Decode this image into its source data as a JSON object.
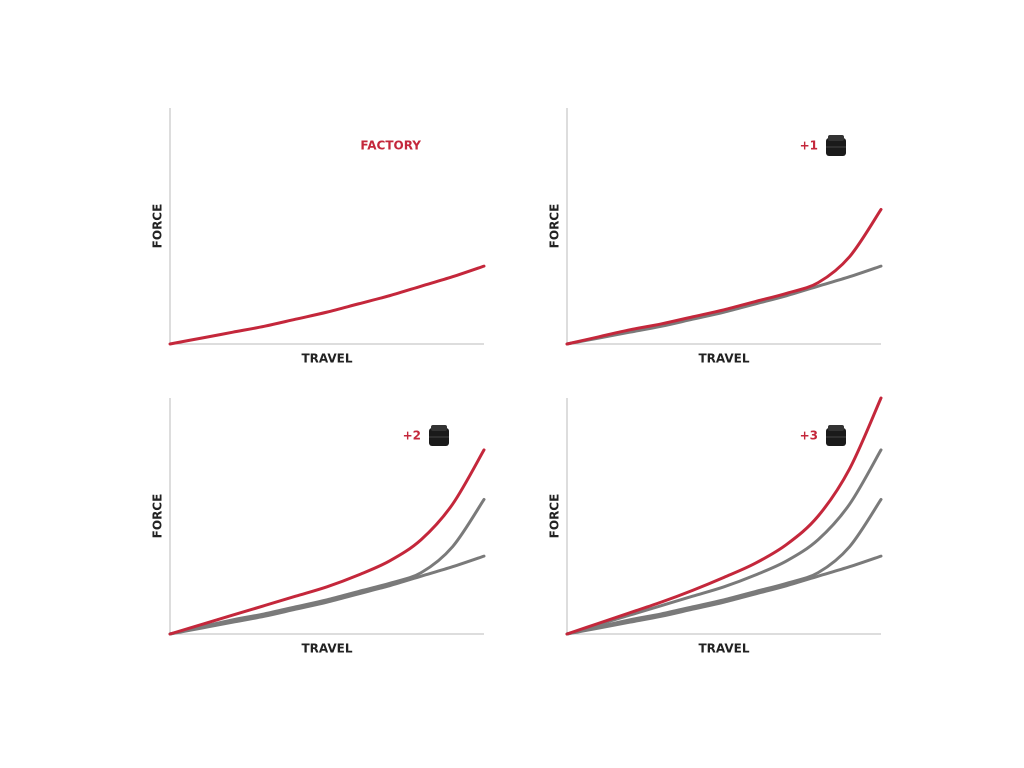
{
  "chart_data": [
    {
      "type": "line",
      "annotation": "FACTORY",
      "token_icon": false,
      "xlabel": "TRAVEL",
      "ylabel": "FORCE",
      "xlim": [
        0,
        100
      ],
      "ylim": [
        0,
        100
      ],
      "x": [
        0,
        10,
        20,
        30,
        40,
        50,
        60,
        70,
        80,
        90,
        100
      ],
      "series": [
        {
          "color": "#c4273b",
          "values": [
            0,
            2.5,
            5,
            7.5,
            10.5,
            13.5,
            17,
            20.5,
            24.5,
            28.5,
            33
          ]
        }
      ]
    },
    {
      "type": "line",
      "annotation": "+1",
      "token_icon": true,
      "xlabel": "TRAVEL",
      "ylabel": "FORCE",
      "xlim": [
        0,
        100
      ],
      "ylim": [
        0,
        100
      ],
      "x": [
        0,
        10,
        20,
        30,
        40,
        50,
        60,
        70,
        80,
        90,
        100
      ],
      "series": [
        {
          "color": "#7a7a7a",
          "values": [
            0,
            2.5,
            5,
            7.5,
            10.5,
            13.5,
            17,
            20.5,
            24.5,
            28.5,
            33
          ]
        },
        {
          "color": "#c4273b",
          "values": [
            0,
            3,
            6,
            8.5,
            11.5,
            14.5,
            18,
            21.5,
            26,
            37,
            57
          ]
        }
      ]
    },
    {
      "type": "line",
      "annotation": "+2",
      "token_icon": true,
      "xlabel": "TRAVEL",
      "ylabel": "FORCE",
      "xlim": [
        0,
        100
      ],
      "ylim": [
        0,
        100
      ],
      "x": [
        0,
        10,
        20,
        30,
        40,
        50,
        60,
        70,
        80,
        90,
        100
      ],
      "series": [
        {
          "color": "#7a7a7a",
          "values": [
            0,
            2.5,
            5,
            7.5,
            10.5,
            13.5,
            17,
            20.5,
            24.5,
            28.5,
            33
          ]
        },
        {
          "color": "#7a7a7a",
          "values": [
            0,
            3,
            6,
            8.5,
            11.5,
            14.5,
            18,
            21.5,
            26,
            37,
            57
          ]
        },
        {
          "color": "#c4273b",
          "values": [
            0,
            4,
            8,
            12,
            16,
            20,
            25,
            31,
            40,
            55,
            78
          ]
        }
      ]
    },
    {
      "type": "line",
      "annotation": "+3",
      "token_icon": true,
      "xlabel": "TRAVEL",
      "ylabel": "FORCE",
      "xlim": [
        0,
        100
      ],
      "ylim": [
        0,
        100
      ],
      "x": [
        0,
        10,
        20,
        30,
        40,
        50,
        60,
        70,
        80,
        90,
        100
      ],
      "series": [
        {
          "color": "#7a7a7a",
          "values": [
            0,
            2.5,
            5,
            7.5,
            10.5,
            13.5,
            17,
            20.5,
            24.5,
            28.5,
            33
          ]
        },
        {
          "color": "#7a7a7a",
          "values": [
            0,
            3,
            6,
            8.5,
            11.5,
            14.5,
            18,
            21.5,
            26,
            37,
            57
          ]
        },
        {
          "color": "#7a7a7a",
          "values": [
            0,
            4,
            8,
            12,
            16,
            20,
            25,
            31,
            40,
            55,
            78
          ]
        },
        {
          "color": "#c4273b",
          "values": [
            0,
            4.5,
            9,
            13.5,
            18.5,
            24,
            30,
            38,
            50,
            70,
            100
          ]
        }
      ]
    }
  ]
}
